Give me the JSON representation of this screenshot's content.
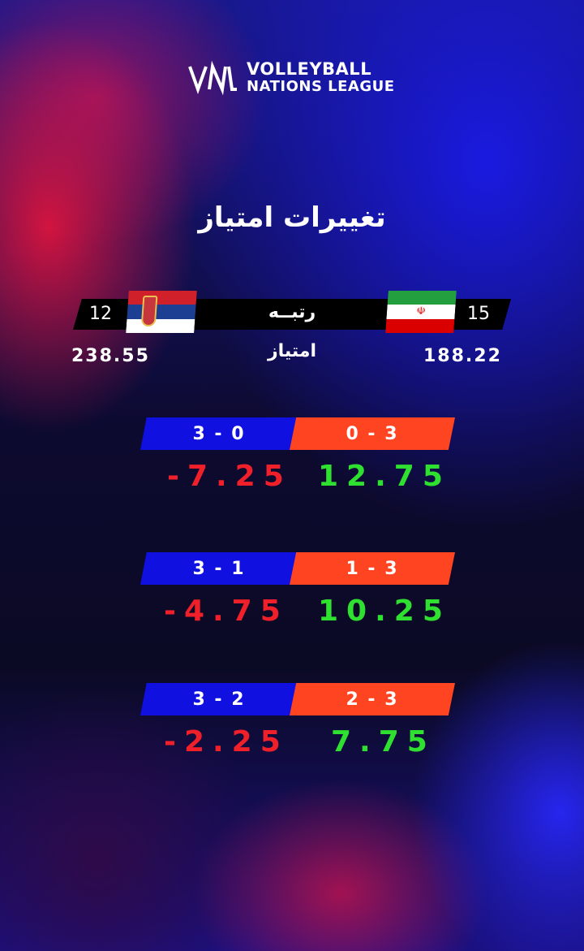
{
  "logo": {
    "line1": "VOLLEYBALL",
    "line2": "NATIONS LEAGUE"
  },
  "title": "تغییرات امتیاز",
  "rank_label": "رتبــه",
  "points_label": "امتیاز",
  "teams": {
    "left": {
      "country": "Serbia",
      "rank": "12",
      "points": "238.55"
    },
    "right": {
      "country": "Iran",
      "rank": "15",
      "points": "188.22"
    }
  },
  "scenarios": [
    {
      "left_score": "3 - 0",
      "right_score": "0 - 3",
      "left_change": "-7.25",
      "right_change": "12.75"
    },
    {
      "left_score": "3 - 1",
      "right_score": "1 - 3",
      "left_change": "-4.75",
      "right_change": "10.25"
    },
    {
      "left_score": "3 - 2",
      "right_score": "2 - 3",
      "left_change": "-2.25",
      "right_change": "7.75"
    }
  ],
  "colors": {
    "blue": "#1010e0",
    "orange": "#ff4422",
    "negative": "#f0202a",
    "positive": "#30e030"
  }
}
